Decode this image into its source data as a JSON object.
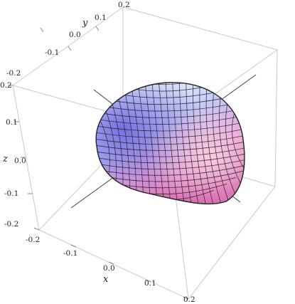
{
  "chart_data": {
    "type": "surface3d",
    "title": "",
    "x_axis": {
      "label": "x",
      "range": [
        -0.2,
        0.2
      ],
      "ticks": [
        "-0.2",
        "-0.1",
        "0.0",
        "0.1",
        "0.2"
      ]
    },
    "y_axis": {
      "label": "y",
      "range": [
        -0.2,
        0.2
      ],
      "ticks": [
        "-0.1",
        "0.0",
        "0.1",
        "0.2"
      ]
    },
    "z_axis": {
      "label": "z",
      "range": [
        -0.2,
        0.2
      ],
      "ticks": [
        "-0.2",
        "-0.1",
        "0.0",
        "0.1",
        "0.2"
      ]
    },
    "corner_labels": [
      "-0.2",
      "0.2",
      "-0.2"
    ],
    "surface": {
      "shape": "rounded egg-shaped closed surface with mesh grid",
      "extent": {
        "x": [
          -0.12,
          0.14
        ],
        "y": [
          -0.12,
          0.12
        ],
        "z": [
          -0.1,
          0.1
        ]
      },
      "colors": {
        "top": "#e8f4ff",
        "left": "#7f7ae8",
        "right": "#ffc9d8",
        "bottom": "#d958b0"
      }
    },
    "grid": false,
    "box": true,
    "axes_through_origin": true
  }
}
